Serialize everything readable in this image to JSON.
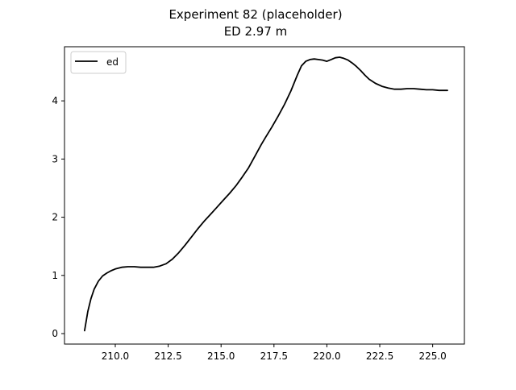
{
  "chart_data": {
    "type": "line",
    "title": "Experiment 82 (placeholder)",
    "subtitle": "ED 2.97 m",
    "xlabel": "",
    "ylabel": "",
    "xlim": [
      207.6,
      226.5
    ],
    "ylim": [
      -0.18,
      4.93
    ],
    "xticks": [
      210.0,
      212.5,
      215.0,
      217.5,
      220.0,
      222.5,
      225.0
    ],
    "xtick_labels": [
      "210.0",
      "212.5",
      "215.0",
      "217.5",
      "220.0",
      "222.5",
      "225.0"
    ],
    "yticks": [
      0,
      1,
      2,
      3,
      4
    ],
    "ytick_labels": [
      "0",
      "1",
      "2",
      "3",
      "4"
    ],
    "grid": false,
    "legend_position": "top-left",
    "series": [
      {
        "name": "ed",
        "color": "#000000",
        "x": [
          208.55,
          208.7,
          208.85,
          209.0,
          209.2,
          209.4,
          209.6,
          209.8,
          210.0,
          210.3,
          210.6,
          210.9,
          211.2,
          211.5,
          211.8,
          212.1,
          212.4,
          212.7,
          213.0,
          213.3,
          213.6,
          213.9,
          214.2,
          214.5,
          214.8,
          215.1,
          215.4,
          215.7,
          216.0,
          216.3,
          216.6,
          216.9,
          217.1,
          217.4,
          217.7,
          218.0,
          218.3,
          218.6,
          218.8,
          219.0,
          219.2,
          219.4,
          219.6,
          219.8,
          220.0,
          220.2,
          220.4,
          220.6,
          220.8,
          221.0,
          221.2,
          221.4,
          221.6,
          221.8,
          222.0,
          222.3,
          222.6,
          222.9,
          223.2,
          223.5,
          223.8,
          224.1,
          224.4,
          224.7,
          225.0,
          225.3,
          225.7
        ],
        "y": [
          0.05,
          0.38,
          0.6,
          0.76,
          0.9,
          0.99,
          1.04,
          1.08,
          1.11,
          1.14,
          1.15,
          1.15,
          1.14,
          1.14,
          1.14,
          1.16,
          1.2,
          1.28,
          1.39,
          1.52,
          1.66,
          1.8,
          1.93,
          2.05,
          2.17,
          2.29,
          2.41,
          2.54,
          2.69,
          2.85,
          3.05,
          3.25,
          3.37,
          3.55,
          3.74,
          3.94,
          4.17,
          4.44,
          4.6,
          4.68,
          4.71,
          4.72,
          4.71,
          4.7,
          4.68,
          4.71,
          4.74,
          4.75,
          4.73,
          4.7,
          4.65,
          4.59,
          4.52,
          4.44,
          4.37,
          4.3,
          4.25,
          4.22,
          4.2,
          4.2,
          4.21,
          4.21,
          4.2,
          4.19,
          4.19,
          4.18,
          4.18
        ]
      }
    ]
  }
}
